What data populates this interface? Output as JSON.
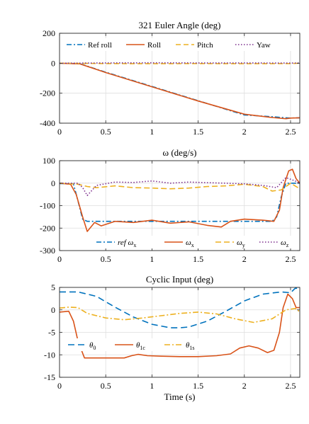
{
  "chart_data": [
    {
      "type": "line",
      "title": "321 Euler Angle (deg)",
      "xlabel": "",
      "ylabel": "",
      "xlim": [
        0,
        2.6
      ],
      "ylim": [
        -400,
        200
      ],
      "xticks": [
        0,
        0.5,
        1,
        1.5,
        2,
        2.5
      ],
      "yticks": [
        -400,
        -200,
        0,
        200
      ],
      "xtick_labels": [
        "0",
        "0.5",
        "1",
        "1.5",
        "2",
        "2.5"
      ],
      "ytick_labels": [
        "-400",
        "-200",
        "0",
        "200"
      ],
      "grid": true,
      "legend_position": "top",
      "legend_columns": 4,
      "series": [
        {
          "name": "Ref roll",
          "legend": "Ref roll",
          "color": "#0072BD",
          "dash": "7,3,2,3",
          "x": [
            0,
            0.22,
            0.5,
            1.0,
            1.5,
            2.0,
            2.3,
            2.45,
            2.5,
            2.6
          ],
          "y": [
            0,
            -3,
            -60,
            -155,
            -250,
            -345,
            -357,
            -364,
            -366,
            -364
          ]
        },
        {
          "name": "Roll",
          "legend": "Roll",
          "color": "#D95319",
          "dash": "",
          "x": [
            0,
            0.22,
            0.5,
            1.0,
            1.5,
            2.0,
            2.3,
            2.45,
            2.5,
            2.6
          ],
          "y": [
            0,
            -4,
            -62,
            -157,
            -252,
            -340,
            -362,
            -370,
            -366,
            -364
          ]
        },
        {
          "name": "Pitch",
          "legend": "Pitch",
          "color": "#EDB120",
          "dash": "7,4",
          "x": [
            0,
            0.5,
            1.0,
            1.5,
            2.0,
            2.5,
            2.6
          ],
          "y": [
            0,
            -2,
            -3,
            -2,
            -3,
            -2,
            0
          ]
        },
        {
          "name": "Yaw",
          "legend": "Yaw",
          "color": "#7E2F8E",
          "dash": "1.5,2.5",
          "x": [
            0,
            0.5,
            1.0,
            1.5,
            2.0,
            2.5,
            2.6
          ],
          "y": [
            0,
            2,
            3,
            2,
            2,
            1,
            1
          ]
        }
      ]
    },
    {
      "type": "line",
      "title": "ω (deg/s)",
      "xlabel": "",
      "ylabel": "",
      "xlim": [
        0,
        2.6
      ],
      "ylim": [
        -300,
        100
      ],
      "xticks": [
        0,
        0.5,
        1,
        1.5,
        2,
        2.5
      ],
      "yticks": [
        -300,
        -200,
        -100,
        0,
        100
      ],
      "xtick_labels": [
        "0",
        "0.5",
        "1",
        "1.5",
        "2",
        "2.5"
      ],
      "ytick_labels": [
        "-300",
        "-200",
        "-100",
        "0",
        "100"
      ],
      "grid": true,
      "legend_position": "bottom",
      "legend_columns": 4,
      "series": [
        {
          "name": "ref ωx",
          "legend": "ref ω",
          "legend_sub": "x",
          "color": "#0072BD",
          "dash": "7,3,2,3",
          "x": [
            0,
            0.15,
            0.2,
            0.25,
            0.3,
            2.3,
            2.35,
            2.4,
            2.45,
            2.6
          ],
          "y": [
            -2,
            -3,
            -80,
            -160,
            -170,
            -170,
            -150,
            -60,
            0,
            0
          ]
        },
        {
          "name": "ωx",
          "legend": "ω",
          "legend_sub": "x",
          "color": "#D95319",
          "dash": "",
          "x": [
            0,
            0.12,
            0.18,
            0.25,
            0.3,
            0.33,
            0.38,
            0.45,
            0.6,
            0.8,
            1.0,
            1.2,
            1.4,
            1.6,
            1.75,
            1.85,
            2.0,
            2.2,
            2.32,
            2.38,
            2.42,
            2.48,
            2.52,
            2.56,
            2.6
          ],
          "y": [
            0,
            -5,
            -50,
            -150,
            -215,
            -200,
            -175,
            -190,
            -170,
            -175,
            -165,
            -178,
            -172,
            -188,
            -195,
            -170,
            -160,
            -165,
            -170,
            -120,
            -20,
            55,
            62,
            20,
            0
          ]
        },
        {
          "name": "ωy",
          "legend": "ω",
          "legend_sub": "y",
          "color": "#EDB120",
          "dash": "8,4",
          "x": [
            0,
            0.2,
            0.3,
            0.4,
            0.6,
            0.8,
            1.0,
            1.2,
            1.4,
            1.6,
            1.8,
            2.0,
            2.2,
            2.3,
            2.4,
            2.5,
            2.6
          ],
          "y": [
            0,
            -5,
            -15,
            -20,
            -12,
            -20,
            -22,
            -25,
            -22,
            -15,
            -12,
            -5,
            -15,
            -35,
            -30,
            0,
            -25
          ]
        },
        {
          "name": "ωz",
          "legend": "ω",
          "legend_sub": "z",
          "color": "#7E2F8E",
          "dash": "1.5,2.5",
          "x": [
            0,
            0.2,
            0.25,
            0.3,
            0.4,
            0.6,
            0.8,
            1.0,
            1.2,
            1.4,
            1.6,
            1.8,
            2.0,
            2.2,
            2.35,
            2.45,
            2.55,
            2.6
          ],
          "y": [
            0,
            0,
            -20,
            -55,
            -10,
            5,
            3,
            10,
            0,
            5,
            2,
            0,
            -3,
            -10,
            -20,
            25,
            10,
            0
          ]
        }
      ]
    },
    {
      "type": "line",
      "title": "Cyclic Input (deg)",
      "xlabel": "Time (s)",
      "ylabel": "",
      "xlim": [
        0,
        2.6
      ],
      "ylim": [
        -15,
        5
      ],
      "xticks": [
        0,
        0.5,
        1,
        1.5,
        2,
        2.5
      ],
      "yticks": [
        -15,
        -10,
        -5,
        0,
        5
      ],
      "xtick_labels": [
        "0",
        "0.5",
        "1",
        "1.5",
        "2",
        "2.5"
      ],
      "ytick_labels": [
        "-15",
        "-10",
        "-5",
        "0",
        "5"
      ],
      "grid": true,
      "legend_position": "middle-left",
      "legend_columns": 3,
      "series": [
        {
          "name": "θ0",
          "legend": "θ",
          "legend_sub": "0",
          "color": "#0072BD",
          "dash": "9,5",
          "x": [
            0,
            0.2,
            0.4,
            0.6,
            0.8,
            1.0,
            1.2,
            1.3,
            1.4,
            1.6,
            1.8,
            2.0,
            2.2,
            2.4,
            2.5,
            2.55,
            2.6
          ],
          "y": [
            4,
            4,
            3.0,
            0.6,
            -1.6,
            -3.2,
            -4.0,
            -4.0,
            -3.8,
            -2.5,
            -0.3,
            2.0,
            3.5,
            4.0,
            3.8,
            4.8,
            4.8
          ]
        },
        {
          "name": "θ1c",
          "legend": "θ",
          "legend_sub": "1c",
          "color": "#D95319",
          "dash": "",
          "x": [
            0,
            0.1,
            0.15,
            0.2,
            0.27,
            0.5,
            0.7,
            0.78,
            0.85,
            0.95,
            1.1,
            1.3,
            1.5,
            1.7,
            1.85,
            1.95,
            2.05,
            2.15,
            2.25,
            2.32,
            2.38,
            2.42,
            2.47,
            2.52,
            2.56,
            2.6
          ],
          "y": [
            -0.5,
            -0.3,
            -2.5,
            -7.0,
            -10.7,
            -10.7,
            -10.7,
            -10.2,
            -9.9,
            -10.2,
            -10.3,
            -10.4,
            -10.4,
            -10.2,
            -9.8,
            -8.5,
            -8.0,
            -8.5,
            -9.5,
            -9.0,
            -5.0,
            0.5,
            3.5,
            2.5,
            0.5,
            0.5
          ]
        },
        {
          "name": "θ1s",
          "legend": "θ",
          "legend_sub": "1s",
          "color": "#EDB120",
          "dash": "8,3,2,3",
          "x": [
            0,
            0.1,
            0.2,
            0.3,
            0.5,
            0.7,
            0.9,
            1.1,
            1.3,
            1.5,
            1.7,
            1.9,
            2.1,
            2.3,
            2.45,
            2.55,
            2.6
          ],
          "y": [
            0.4,
            0.6,
            0.5,
            -0.8,
            -1.8,
            -2.2,
            -1.8,
            -1.3,
            -0.8,
            -0.5,
            -0.9,
            -2.0,
            -2.8,
            -2.0,
            0.0,
            0.3,
            -0.4
          ]
        }
      ]
    }
  ]
}
